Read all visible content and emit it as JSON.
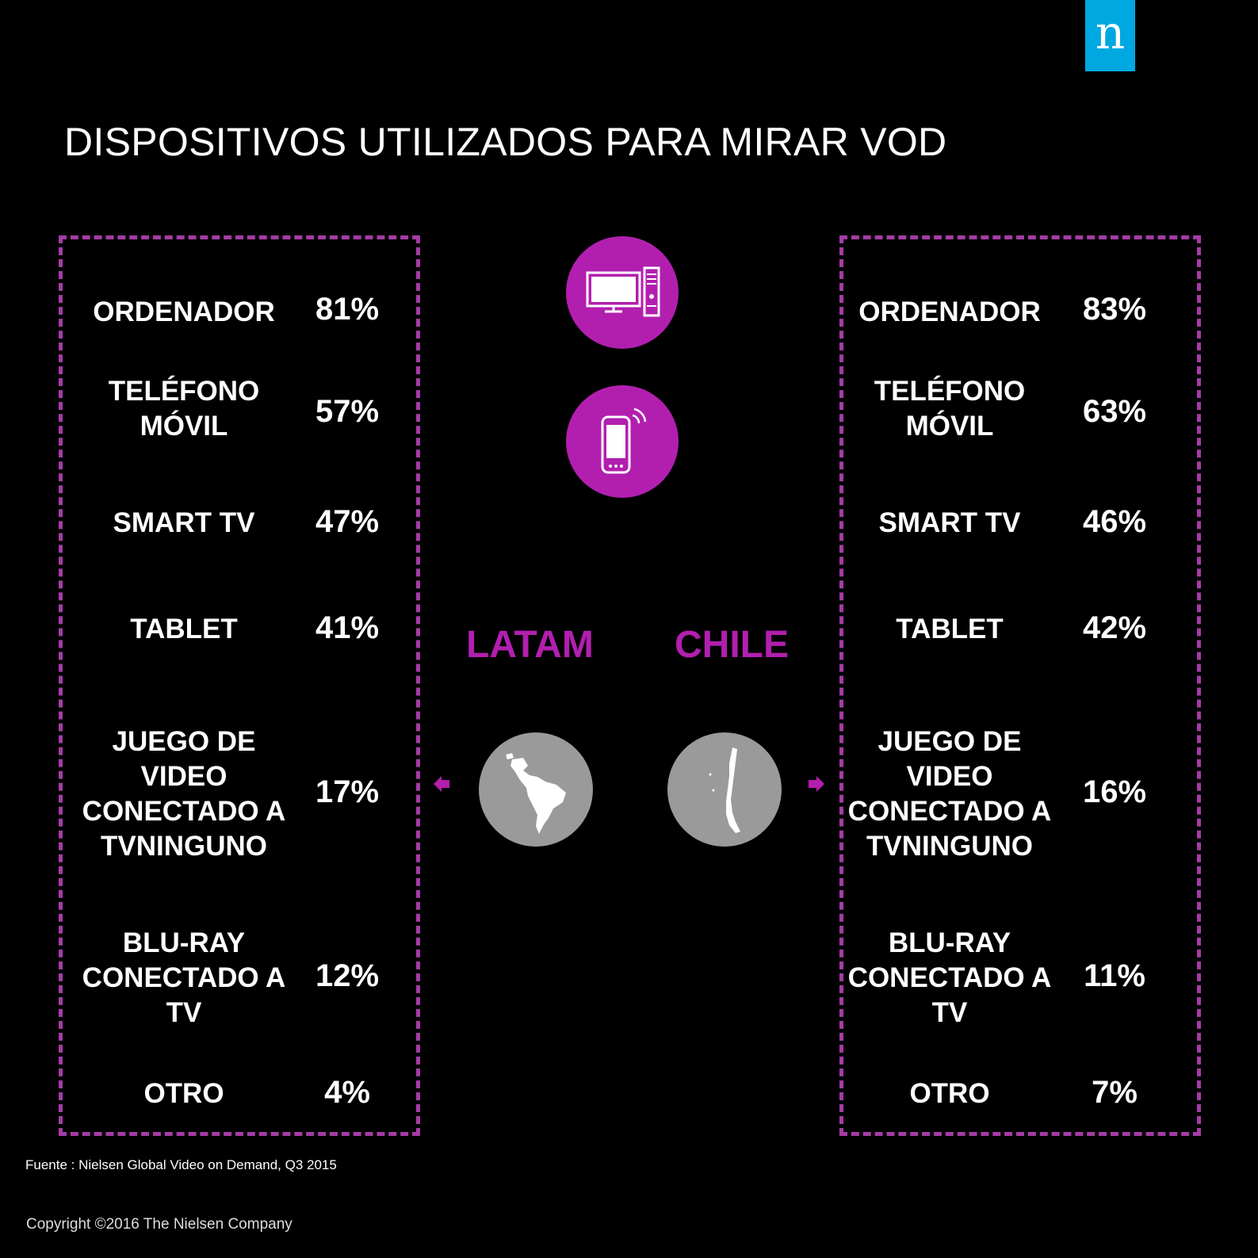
{
  "logo": "n",
  "title": "DISPOSITIVOS UTILIZADOS PARA MIRAR VOD",
  "regions": {
    "left": "LATAM",
    "right": "CHILE"
  },
  "chart_data": {
    "type": "table",
    "categories": [
      "ORDENADOR",
      "TELÉFONO MÓVIL",
      "SMART TV",
      "TABLET",
      "JUEGO DE VIDEO CONECTADO A TVNINGUNO",
      "BLU-RAY CONECTADO A TV",
      "OTRO"
    ],
    "series": [
      {
        "name": "LATAM",
        "values": [
          81,
          57,
          47,
          41,
          17,
          12,
          4
        ]
      },
      {
        "name": "CHILE",
        "values": [
          83,
          63,
          46,
          42,
          16,
          11,
          7
        ]
      }
    ],
    "unit": "%"
  },
  "labels": {
    "ordenador": "ORDENADOR",
    "telefono": "TELÉFONO MÓVIL",
    "smart_tv": "SMART TV",
    "tablet": "TABLET",
    "juego": "JUEGO DE VIDEO CONECTADO A TVNINGUNO",
    "bluray": "BLU-RAY CONECTADO A TV",
    "otro": "OTRO"
  },
  "latam_values": {
    "ordenador": "81%",
    "telefono": "57%",
    "smart_tv": "47%",
    "tablet": "41%",
    "juego": "17%",
    "bluray": "12%",
    "otro": "4%"
  },
  "chile_values": {
    "ordenador": "83%",
    "telefono": "63%",
    "smart_tv": "46%",
    "tablet": "42%",
    "juego": "16%",
    "bluray": "11%",
    "otro": "7%"
  },
  "icons": {
    "computer": "computer-icon",
    "phone": "mobile-phone-icon",
    "latam_map": "south-america-map-icon",
    "chile_map": "chile-map-icon"
  },
  "colors": {
    "accent": "#b21faf",
    "dash": "#a53ca6",
    "logo": "#00a8e1",
    "map_circle": "#9a9a9a"
  },
  "footer": {
    "source": "Fuente : Nielsen Global Video on Demand, Q3 2015",
    "copyright": "Copyright ©2016 The Nielsen Company"
  }
}
